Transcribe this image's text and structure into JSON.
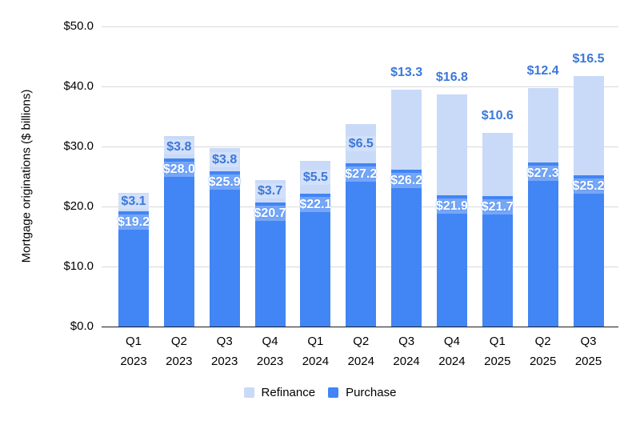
{
  "chart_data": {
    "type": "bar",
    "stacked": true,
    "title": "",
    "xlabel": "",
    "ylabel": "Mortgage originations ($ billions)",
    "ylim": [
      0,
      50
    ],
    "grid": true,
    "value_prefix": "$",
    "value_decimals": 1,
    "y_ticks": [
      0,
      10,
      20,
      30,
      40,
      50
    ],
    "y_tick_labels": [
      "$0.0",
      "$10.0",
      "$20.0",
      "$30.0",
      "$40.0",
      "$50.0"
    ],
    "categories": [
      [
        "Q1",
        "2023"
      ],
      [
        "Q2",
        "2023"
      ],
      [
        "Q3",
        "2023"
      ],
      [
        "Q4",
        "2023"
      ],
      [
        "Q1",
        "2024"
      ],
      [
        "Q2",
        "2024"
      ],
      [
        "Q3",
        "2024"
      ],
      [
        "Q4",
        "2024"
      ],
      [
        "Q1",
        "2025"
      ],
      [
        "Q2",
        "2025"
      ],
      [
        "Q3",
        "2025"
      ]
    ],
    "series": [
      {
        "name": "Purchase",
        "color": "#4285f4",
        "label_color": "#ffffff",
        "values": [
          19.2,
          28.0,
          25.9,
          20.7,
          22.1,
          27.2,
          26.2,
          21.9,
          21.7,
          27.3,
          25.2
        ],
        "label_placement": [
          "inside",
          "inside",
          "inside",
          "inside",
          "inside",
          "inside",
          "inside",
          "inside",
          "inside",
          "inside",
          "inside"
        ]
      },
      {
        "name": "Refinance",
        "color": "#c9daf8",
        "label_color": "#3c78d8",
        "values": [
          3.1,
          3.8,
          3.8,
          3.7,
          5.5,
          6.5,
          13.3,
          16.8,
          10.6,
          12.4,
          16.5
        ],
        "label_placement": [
          "inside",
          "inside",
          "inside",
          "inside",
          "inside",
          "inside",
          "above",
          "above",
          "above",
          "above",
          "above"
        ]
      }
    ],
    "legend": {
      "position": "bottom",
      "items": [
        {
          "label": "Refinance",
          "color": "#c9daf8"
        },
        {
          "label": "Purchase",
          "color": "#4285f4"
        }
      ]
    }
  }
}
